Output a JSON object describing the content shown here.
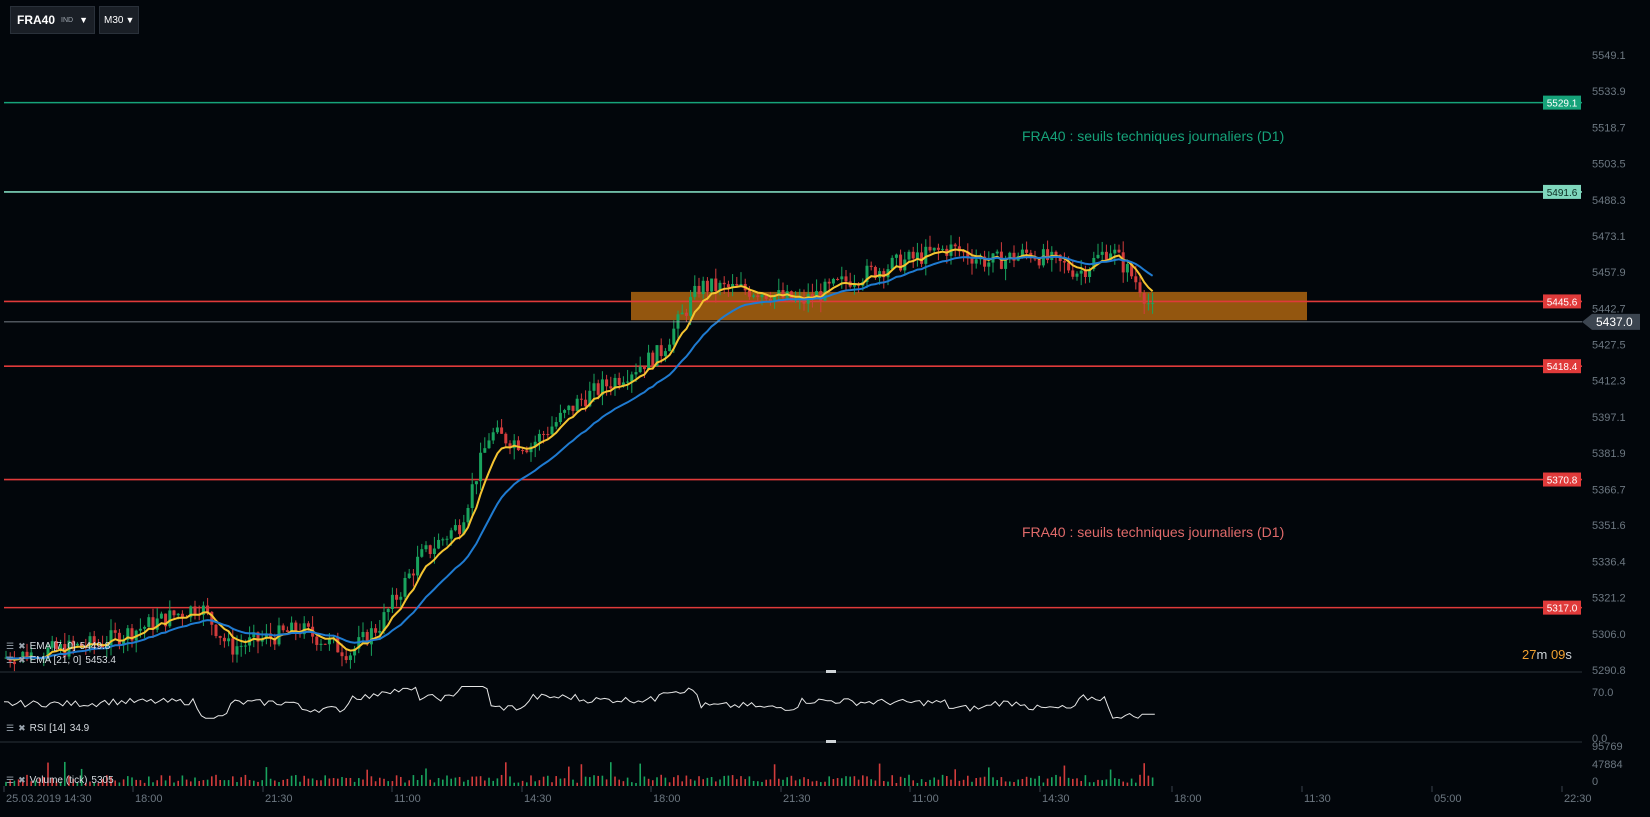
{
  "toolbar": {
    "symbol": "FRA40",
    "symbol_type": "IND",
    "timeframe": "M30"
  },
  "colors": {
    "background": "#02060b",
    "support": "#e03a3a",
    "resistance_green": "#16a37a",
    "resistance_light": "#7fd7bd",
    "zone": "#b86a10",
    "ema_fast": "#f5c431",
    "ema_slow": "#1f7bd1",
    "rsi": "#e6e6e6",
    "candle_up": "#19a35e",
    "candle_down": "#d23c3c",
    "price_tag": "#3c4550"
  },
  "price_axis": {
    "labels": [
      "5549.1",
      "5533.9",
      "5518.7",
      "5503.5",
      "5488.3",
      "5473.1",
      "5457.9",
      "5442.7",
      "5427.5",
      "5412.3",
      "5397.1",
      "5381.9",
      "5366.7",
      "5351.6",
      "5336.4",
      "5321.2",
      "5306.0",
      "5290.8"
    ],
    "min": 5290.8,
    "max": 5549.1
  },
  "levels": [
    {
      "value": "5529.1",
      "kind": "resistance_green"
    },
    {
      "value": "5491.6",
      "kind": "resistance_light"
    },
    {
      "value": "5445.6",
      "kind": "support"
    },
    {
      "value": "5418.4",
      "kind": "support"
    },
    {
      "value": "5370.8",
      "kind": "support"
    },
    {
      "value": "5317.0",
      "kind": "support"
    }
  ],
  "zone": {
    "from": 5437.7,
    "to": 5449.6
  },
  "current_price": "5437.0",
  "annotations": {
    "upper": "FRA40 : seuils techniques journaliers (D1)",
    "lower": "FRA40 : seuils techniques journaliers (D1)"
  },
  "indicators": {
    "ema_fast": {
      "label": "EMA  [7, 0]",
      "value": "5449.8"
    },
    "ema_slow": {
      "label": "EMA  [21, 0]",
      "value": "5453.4"
    },
    "rsi": {
      "label": "RSI  [14]",
      "value": "34.9",
      "axis": [
        "70.0",
        "0.0"
      ]
    },
    "volume": {
      "label": "Volume  (tick)",
      "value": "5305",
      "axis": [
        "95769",
        "47884",
        "0"
      ]
    }
  },
  "countdown": {
    "minutes": "27",
    "m_unit": "m",
    "seconds": "09",
    "s_unit": "s"
  },
  "time_axis": [
    "25.03.2019  14:30",
    "18:00",
    "21:30",
    "11:00",
    "14:30",
    "18:00",
    "21:30",
    "11:00",
    "14:30",
    "18:00",
    "11:30",
    "05:00",
    "22:30"
  ],
  "chart_data": {
    "type": "candlestick",
    "symbol": "FRA40",
    "timeframe": "M30",
    "price_range": [
      5290.8,
      5549.1
    ],
    "last_price": 5437.0,
    "series": [
      {
        "name": "EMA [7, 0]",
        "last": 5449.8
      },
      {
        "name": "EMA [21, 0]",
        "last": 5453.4
      },
      {
        "name": "RSI [14]",
        "last": 34.9
      },
      {
        "name": "Volume (tick)",
        "last": 5305
      }
    ],
    "horizontal_levels": [
      5529.1,
      5491.6,
      5445.6,
      5418.4,
      5370.8,
      5317.0
    ]
  }
}
